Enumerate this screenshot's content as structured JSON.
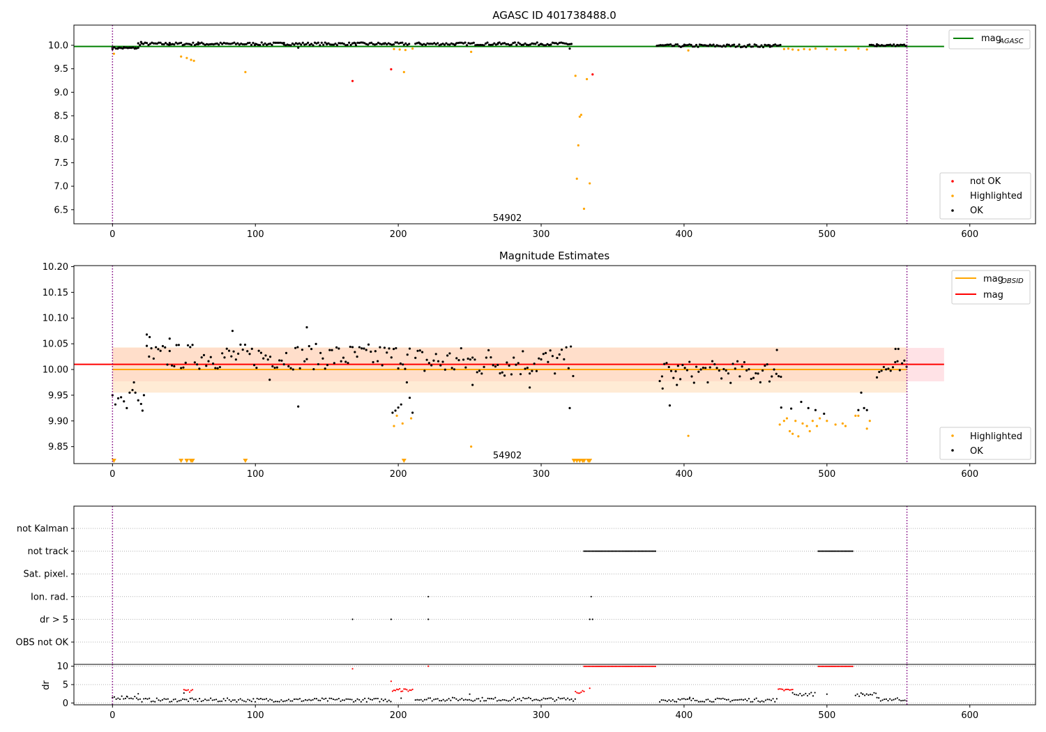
{
  "figure_title": "AGASC ID 401738488.0",
  "chart_data": [
    {
      "panel": "agasc_mag",
      "type": "scatter",
      "title": "AGASC ID 401738488.0",
      "xlim": [
        -27,
        646
      ],
      "ylim": [
        6.2,
        10.43
      ],
      "xticks": [
        0,
        100,
        200,
        300,
        400,
        500,
        600
      ],
      "yticks": [
        6.5,
        7.0,
        7.5,
        8.0,
        8.5,
        9.0,
        9.5,
        10.0
      ],
      "ytick_labels": [
        "6.5",
        "7.0",
        "7.5",
        "8.0",
        "8.5",
        "9.0",
        "9.5",
        "10.0"
      ],
      "obsid_annotation": {
        "text": "54902",
        "x": 277,
        "y": 6.33
      },
      "vlines": [
        0,
        556
      ],
      "hlines": [
        {
          "name": "mag_AGASC",
          "y": 9.975,
          "x_range": [
            -27,
            582
          ],
          "color": "#008000"
        }
      ],
      "legend": [
        {
          "label": "mag",
          "sub": "AGASC",
          "kind": "line",
          "color": "#008000",
          "position": "top-right"
        }
      ],
      "legend_points": [
        {
          "label": "not OK",
          "color": "#ff0000"
        },
        {
          "label": "Highlighted",
          "color": "#ffa500"
        },
        {
          "label": "OK",
          "color": "#000000"
        }
      ],
      "series": [
        {
          "name": "not OK",
          "color": "#ff0000",
          "points": [
            [
              168,
              9.24
            ],
            [
              195,
              9.49
            ],
            [
              336,
              9.38
            ]
          ]
        },
        {
          "name": "Highlighted",
          "color": "#ffa500",
          "points": [
            [
              1,
              9.82
            ],
            [
              48,
              9.76
            ],
            [
              52,
              9.73
            ],
            [
              55,
              9.69
            ],
            [
              57,
              9.67
            ],
            [
              93,
              9.43
            ],
            [
              197,
              9.92
            ],
            [
              201,
              9.91
            ],
            [
              204,
              9.43
            ],
            [
              205,
              9.9
            ],
            [
              210,
              9.93
            ],
            [
              251,
              9.86
            ],
            [
              324,
              9.35
            ],
            [
              325,
              7.16
            ],
            [
              326,
              7.87
            ],
            [
              327,
              8.48
            ],
            [
              328,
              8.52
            ],
            [
              330,
              6.52
            ],
            [
              332,
              9.28
            ],
            [
              334,
              7.06
            ],
            [
              403,
              9.89
            ],
            [
              470,
              9.92
            ],
            [
              473,
              9.93
            ],
            [
              476,
              9.91
            ],
            [
              480,
              9.9
            ],
            [
              484,
              9.92
            ],
            [
              488,
              9.91
            ],
            [
              492,
              9.93
            ],
            [
              500,
              9.92
            ],
            [
              506,
              9.91
            ],
            [
              513,
              9.9
            ],
            [
              522,
              9.93
            ],
            [
              528,
              9.91
            ]
          ]
        },
        {
          "name": "OK",
          "color": "#000000",
          "generated": "dense sampling at ~10.0 over x-ranges [0,208],[212,322],[381,468],[530,556]",
          "points": [
            [
              0,
              9.95
            ],
            [
              4,
              9.94
            ],
            [
              8,
              9.96
            ],
            [
              12,
              9.95
            ],
            [
              16,
              9.94
            ],
            [
              20,
              10.07
            ],
            [
              40,
              10.05
            ],
            [
              60,
              10.06
            ],
            [
              80,
              10.04
            ],
            [
              100,
              10.03
            ],
            [
              120,
              10.05
            ],
            [
              130,
              9.95
            ],
            [
              150,
              10.02
            ],
            [
              170,
              10.04
            ],
            [
              190,
              10.03
            ],
            [
              215,
              10.04
            ],
            [
              240,
              10.02
            ],
            [
              270,
              10.05
            ],
            [
              300,
              10.03
            ],
            [
              320,
              9.93
            ],
            [
              385,
              10.0
            ],
            [
              400,
              9.99
            ],
            [
              430,
              10.01
            ],
            [
              460,
              10.0
            ],
            [
              535,
              10.02
            ],
            [
              550,
              10.0
            ]
          ]
        }
      ],
      "ok_segments": [
        [
          0,
          18,
          9.94,
          0.02
        ],
        [
          18,
          208,
          10.03,
          0.03
        ],
        [
          212,
          322,
          10.03,
          0.03
        ],
        [
          381,
          468,
          9.99,
          0.03
        ],
        [
          530,
          556,
          10.0,
          0.02
        ]
      ]
    },
    {
      "panel": "mag_estimates",
      "type": "scatter",
      "title": "Magnitude Estimates",
      "xlim": [
        -27,
        646
      ],
      "ylim": [
        9.817,
        10.202
      ],
      "xticks": [
        0,
        100,
        200,
        300,
        400,
        500,
        600
      ],
      "yticks": [
        9.85,
        9.9,
        9.95,
        10.0,
        10.05,
        10.1,
        10.15,
        10.2
      ],
      "ytick_labels": [
        "9.85",
        "9.90",
        "9.95",
        "10.00",
        "10.05",
        "10.10",
        "10.15",
        "10.20"
      ],
      "obsid_annotation": {
        "text": "54902",
        "x": 277,
        "y": 9.834
      },
      "vlines": [
        0,
        556
      ],
      "bands": [
        {
          "name": "mag band",
          "y": [
            9.977,
            10.042
          ],
          "x_range": [
            0,
            582
          ],
          "color": "#ffb6c1"
        },
        {
          "name": "mag_OBSID band",
          "y": [
            9.955,
            10.043
          ],
          "x_range": [
            0,
            556
          ],
          "color": "#ffdab3"
        }
      ],
      "hlines": [
        {
          "name": "mag_OBSID",
          "y": 10.0,
          "x_range": [
            0,
            556
          ],
          "color": "#ffa500"
        },
        {
          "name": "mag",
          "y": 10.01,
          "x_range": [
            -27,
            582
          ],
          "color": "#ff0000"
        }
      ],
      "legend": [
        {
          "label": "mag",
          "sub": "OBSID",
          "kind": "line",
          "color": "#ffa500",
          "position": "top-right"
        },
        {
          "label": "mag",
          "sub": "",
          "kind": "line",
          "color": "#ff0000",
          "position": "top-right"
        }
      ],
      "legend_points": [
        {
          "label": "Highlighted",
          "color": "#ffa500"
        },
        {
          "label": "OK",
          "color": "#000000"
        }
      ],
      "series": [
        {
          "name": "Highlighted",
          "color": "#ffa500",
          "points": [
            [
              197,
              9.89
            ],
            [
              199,
              9.91
            ],
            [
              203,
              9.895
            ],
            [
              209,
              9.905
            ],
            [
              251,
              9.85
            ],
            [
              403,
              9.871
            ],
            [
              467,
              9.893
            ],
            [
              470,
              9.9
            ],
            [
              472,
              9.905
            ],
            [
              474,
              9.88
            ],
            [
              476,
              9.875
            ],
            [
              478,
              9.9
            ],
            [
              480,
              9.87
            ],
            [
              483,
              9.895
            ],
            [
              486,
              9.89
            ],
            [
              488,
              9.88
            ],
            [
              490,
              9.9
            ],
            [
              493,
              9.89
            ],
            [
              495,
              9.905
            ],
            [
              500,
              9.9
            ],
            [
              506,
              9.893
            ],
            [
              511,
              9.895
            ],
            [
              513,
              9.89
            ],
            [
              520,
              9.91
            ],
            [
              522,
              9.91
            ],
            [
              528,
              9.885
            ],
            [
              530,
              9.9
            ]
          ]
        },
        {
          "name": "Highlighted (below axis)",
          "color": "#ffa500",
          "marker": "triangle",
          "x": [
            1,
            48,
            52,
            55,
            56,
            93,
            204,
            323,
            325,
            327,
            329,
            330,
            333,
            334
          ]
        },
        {
          "name": "OK",
          "color": "#000000",
          "generated": "scattered sampling",
          "points": [
            [
              0,
              9.95
            ],
            [
              2,
              9.932
            ],
            [
              4,
              9.944
            ],
            [
              6,
              9.946
            ],
            [
              8,
              9.938
            ],
            [
              10,
              9.925
            ],
            [
              12,
              9.955
            ],
            [
              14,
              9.96
            ],
            [
              15,
              9.975
            ],
            [
              16,
              9.955
            ],
            [
              18,
              9.94
            ],
            [
              20,
              9.933
            ],
            [
              21,
              9.92
            ],
            [
              22,
              9.95
            ],
            [
              24,
              10.068
            ],
            [
              26,
              10.063
            ],
            [
              40,
              10.06
            ],
            [
              84,
              10.075
            ],
            [
              110,
              9.98
            ],
            [
              130,
              9.928
            ],
            [
              136,
              10.082
            ],
            [
              196,
              9.916
            ],
            [
              198,
              9.92
            ],
            [
              200,
              9.926
            ],
            [
              202,
              9.932
            ],
            [
              206,
              9.975
            ],
            [
              208,
              9.945
            ],
            [
              210,
              9.916
            ],
            [
              252,
              9.97
            ],
            [
              292,
              9.965
            ],
            [
              320,
              9.925
            ],
            [
              385,
              9.963
            ],
            [
              390,
              9.93
            ],
            [
              395,
              9.97
            ],
            [
              465,
              10.038
            ],
            [
              468,
              9.926
            ],
            [
              475,
              9.924
            ],
            [
              482,
              9.937
            ],
            [
              487,
              9.925
            ],
            [
              492,
              9.921
            ],
            [
              498,
              9.914
            ],
            [
              522,
              9.921
            ],
            [
              524,
              9.955
            ],
            [
              526,
              9.925
            ],
            [
              528,
              9.921
            ],
            [
              548,
              10.04
            ],
            [
              550,
              10.04
            ]
          ]
        }
      ],
      "ok_segments": [
        [
          24,
          208,
          10.025,
          0.025
        ],
        [
          212,
          324,
          10.015,
          0.03
        ],
        [
          383,
          468,
          9.995,
          0.022
        ],
        [
          535,
          556,
          10.0,
          0.018
        ]
      ]
    },
    {
      "panel": "flags",
      "type": "scatter",
      "xlim": [
        -27,
        646
      ],
      "categories": [
        "not Kalman",
        "not track",
        "Sat. pixel.",
        "Ion. rad.",
        "dr > 5",
        "OBS not OK"
      ],
      "vlines": [
        0,
        556
      ],
      "series": [
        {
          "name": "not track",
          "color": "#000000",
          "ranges": [
            [
              330,
              380
            ],
            [
              494,
              518
            ]
          ]
        },
        {
          "name": "Ion. rad.",
          "color": "#000000",
          "x": [
            221,
            335
          ]
        },
        {
          "name": "dr > 5",
          "color": "#000000",
          "x": [
            168,
            195,
            221,
            334,
            336
          ]
        }
      ]
    },
    {
      "panel": "dr",
      "type": "scatter",
      "ylabel": "dr",
      "xlim": [
        -27,
        646
      ],
      "ylim": [
        -0.5,
        10.5
      ],
      "yticks": [
        0,
        5,
        10
      ],
      "ytick_labels": [
        "0",
        "5",
        "10"
      ],
      "xticks": [
        0,
        100,
        200,
        300,
        400,
        500,
        600
      ],
      "vlines": [
        0,
        556
      ],
      "series": [
        {
          "name": "not OK",
          "color": "#ff0000",
          "points": [
            [
              168,
              9.3
            ],
            [
              195,
              5.9
            ],
            [
              221,
              10.0
            ],
            [
              334,
              4.0
            ]
          ],
          "clipped_ranges": [
            [
              330,
              380
            ],
            [
              494,
              518
            ]
          ],
          "red_runs": [
            [
              50,
              56,
              3.3
            ],
            [
              196,
              210,
              3.5
            ],
            [
              324,
              330,
              3.0
            ],
            [
              466,
              476,
              3.5
            ]
          ]
        },
        {
          "name": "OK",
          "color": "#000000",
          "generated": "low dr values near 0.5-2",
          "points": [
            [
              0,
              1.5
            ],
            [
              10,
              1.8
            ],
            [
              18,
              2.5
            ],
            [
              50,
              2.7
            ],
            [
              202,
              1.3
            ],
            [
              250,
              2.4
            ],
            [
              404,
              1.5
            ],
            [
              500,
              2.4
            ],
            [
              525,
              2.4
            ]
          ]
        }
      ]
    }
  ]
}
